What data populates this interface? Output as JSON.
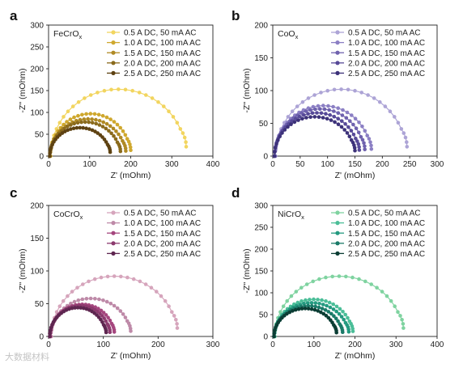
{
  "watermark": "大数据材料",
  "chart_data": [
    {
      "type": "scatter",
      "panel_label": "a",
      "sample": "FeCrO",
      "sample_sub": "x",
      "xlabel": "Z' (mOhm)",
      "ylabel": "-Z'' (mOhm)",
      "xlim": [
        0,
        400
      ],
      "ylim": [
        0,
        300
      ],
      "xticks": [
        0,
        100,
        200,
        300,
        400
      ],
      "yticks": [
        0,
        50,
        100,
        150,
        200,
        250,
        300
      ],
      "legend_position": "top-right",
      "series": [
        {
          "name": "0.5 A DC, 50 mA AC",
          "color": "#F2D55F",
          "x0": 5,
          "x1": 335,
          "peak": 153
        },
        {
          "name": "1.0 A DC, 100 mA AC",
          "color": "#CFA82E",
          "x0": 4,
          "x1": 200,
          "peak": 97
        },
        {
          "name": "1.5 A DC, 150 mA AC",
          "color": "#B08A24",
          "x0": 4,
          "x1": 188,
          "peak": 85
        },
        {
          "name": "2.0 A DC, 200 mA AC",
          "color": "#8A6A1C",
          "x0": 3,
          "x1": 175,
          "peak": 78
        },
        {
          "name": "2.5 A DC, 250 mA AC",
          "color": "#5E4212",
          "x0": 3,
          "x1": 150,
          "peak": 65
        }
      ]
    },
    {
      "type": "scatter",
      "panel_label": "b",
      "sample": "CoO",
      "sample_sub": "x",
      "xlabel": "Z' (mOhm)",
      "ylabel": "-Z'' (mOhm)",
      "xlim": [
        0,
        300
      ],
      "ylim": [
        0,
        200
      ],
      "xticks": [
        0,
        50,
        100,
        150,
        200,
        250,
        300
      ],
      "yticks": [
        0,
        50,
        100,
        150,
        200
      ],
      "legend_position": "top-right",
      "series": [
        {
          "name": "0.5 A DC, 50 mA AC",
          "color": "#ADA4D6",
          "x0": 5,
          "x1": 245,
          "peak": 102
        },
        {
          "name": "1.0 A DC, 100 mA AC",
          "color": "#8B7FC4",
          "x0": 4,
          "x1": 180,
          "peak": 77
        },
        {
          "name": "1.5 A DC, 150 mA AC",
          "color": "#6F62AE",
          "x0": 4,
          "x1": 168,
          "peak": 72
        },
        {
          "name": "2.0 A DC, 200 mA AC",
          "color": "#574A98",
          "x0": 3,
          "x1": 158,
          "peak": 66
        },
        {
          "name": "2.5 A DC, 250 mA AC",
          "color": "#3D327A",
          "x0": 3,
          "x1": 150,
          "peak": 60
        }
      ]
    },
    {
      "type": "scatter",
      "panel_label": "c",
      "sample": "CoCrO",
      "sample_sub": "x",
      "xlabel": "Z' (mOhm)",
      "ylabel": "-Z'' (mOhm)",
      "xlim": [
        0,
        300
      ],
      "ylim": [
        0,
        200
      ],
      "xticks": [
        0,
        100,
        200,
        300
      ],
      "yticks": [
        0,
        50,
        100,
        150,
        200
      ],
      "legend_position": "top-right",
      "series": [
        {
          "name": "0.5 A DC, 50 mA AC",
          "color": "#D6A5BC",
          "x0": 5,
          "x1": 235,
          "peak": 92
        },
        {
          "name": "1.0 A DC, 100 mA AC",
          "color": "#BE8AA8",
          "x0": 4,
          "x1": 150,
          "peak": 58
        },
        {
          "name": "1.5 A DC, 150 mA AC",
          "color": "#A5467E",
          "x0": 3,
          "x1": 120,
          "peak": 49
        },
        {
          "name": "2.0 A DC, 200 mA AC",
          "color": "#8C3A6E",
          "x0": 3,
          "x1": 112,
          "peak": 47
        },
        {
          "name": "2.5 A DC, 250 mA AC",
          "color": "#5E2650",
          "x0": 2,
          "x1": 105,
          "peak": 44
        }
      ]
    },
    {
      "type": "scatter",
      "panel_label": "d",
      "sample": "NiCrO",
      "sample_sub": "x",
      "xlabel": "Z' (mOhm)",
      "ylabel": "-Z'' (mOhm)",
      "xlim": [
        0,
        400
      ],
      "ylim": [
        0,
        300
      ],
      "xticks": [
        0,
        100,
        200,
        300,
        400
      ],
      "yticks": [
        0,
        50,
        100,
        150,
        200,
        250,
        300
      ],
      "legend_position": "top-right",
      "series": [
        {
          "name": "0.5 A DC, 50 mA AC",
          "color": "#7FD3A0",
          "x0": 5,
          "x1": 318,
          "peak": 138
        },
        {
          "name": "1.0 A DC, 100 mA AC",
          "color": "#4BBE98",
          "x0": 4,
          "x1": 195,
          "peak": 85
        },
        {
          "name": "1.5 A DC, 150 mA AC",
          "color": "#249A80",
          "x0": 4,
          "x1": 185,
          "peak": 77
        },
        {
          "name": "2.0 A DC, 200 mA AC",
          "color": "#1A7A68",
          "x0": 3,
          "x1": 170,
          "peak": 70
        },
        {
          "name": "2.5 A DC, 250 mA AC",
          "color": "#0B3D34",
          "x0": 3,
          "x1": 155,
          "peak": 64
        }
      ]
    }
  ]
}
